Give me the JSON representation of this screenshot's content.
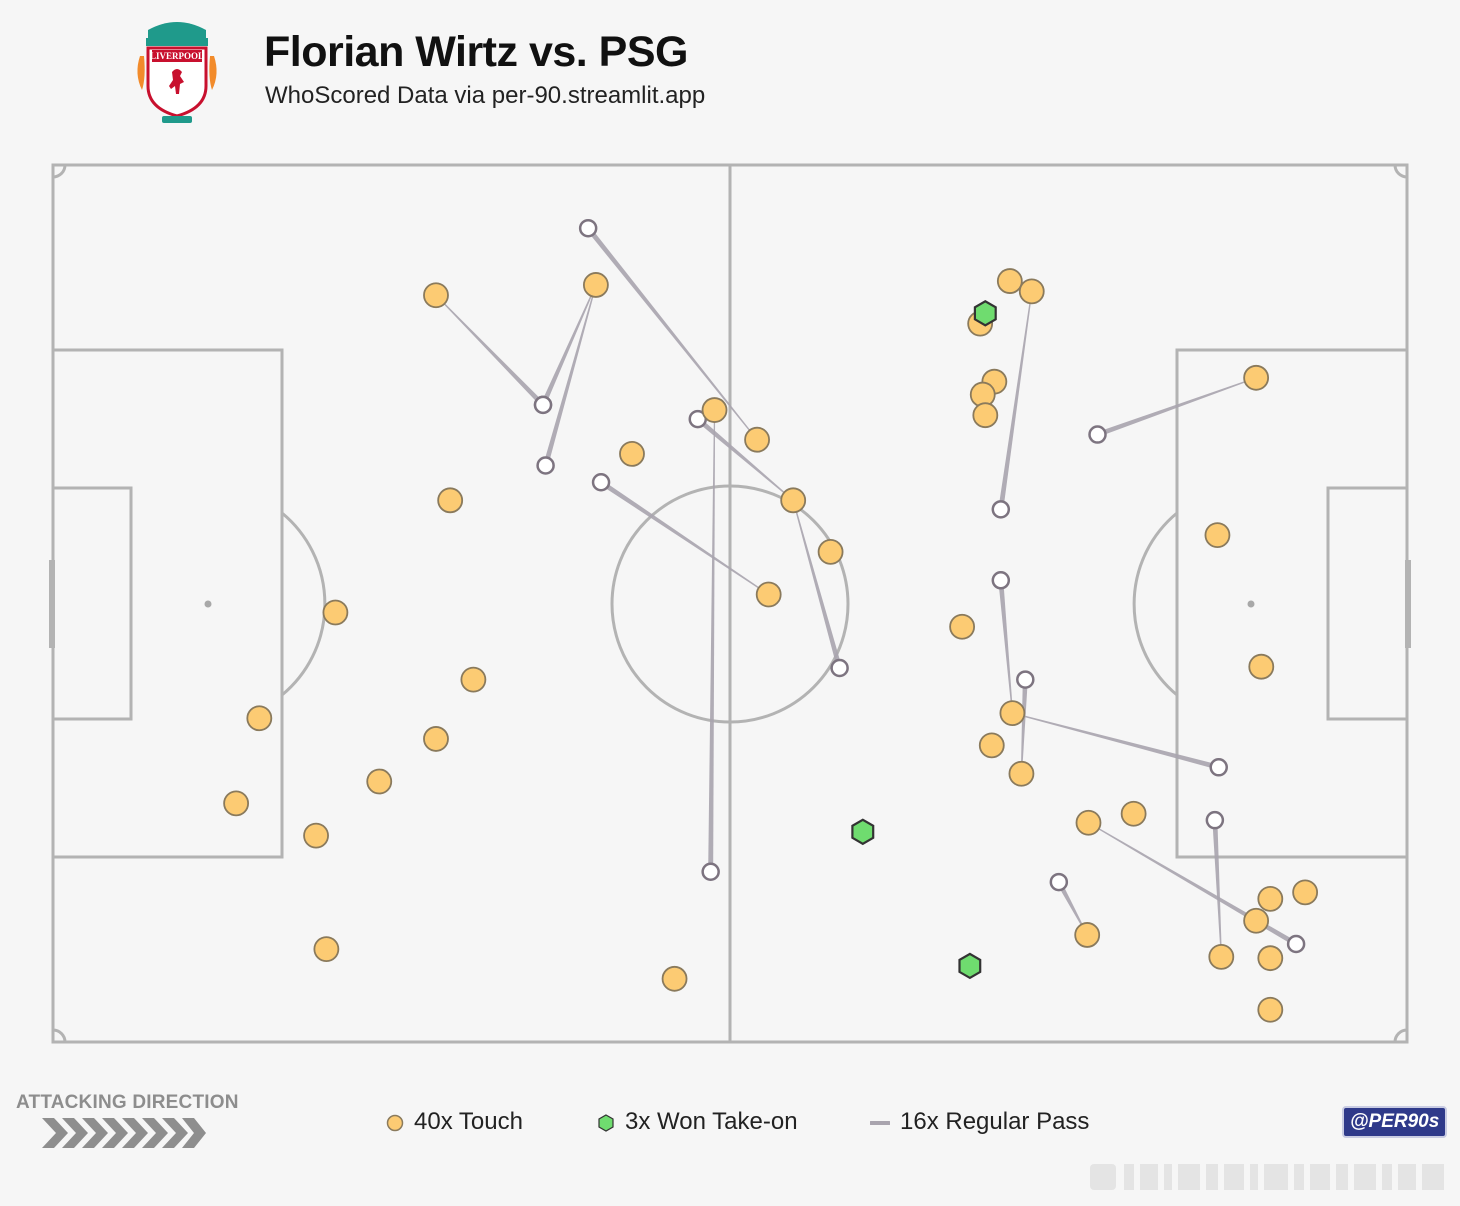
{
  "header": {
    "title": "Florian Wirtz vs. PSG",
    "subtitle": "WhoScored Data via per-90.streamlit.app",
    "crest_text": "LIVERPOOL"
  },
  "colors": {
    "touch": "#fccb73",
    "touch_stroke": "#8a7a5c",
    "takeon": "#6fdc6f",
    "takeon_stroke": "#333333",
    "pass": "#a9a4ae",
    "pitch_line": "#b3b3b3",
    "background": "#f6f6f6"
  },
  "chart_data": {
    "type": "scatter",
    "title": "Florian Wirtz vs. PSG",
    "subtitle": "WhoScored Data via per-90.streamlit.app",
    "xlim": [
      0,
      105
    ],
    "ylim": [
      0,
      68
    ],
    "touches": [
      [
        14.2,
        18.5
      ],
      [
        20.4,
        16.0
      ],
      [
        29.7,
        23.5
      ],
      [
        32.6,
        28.1
      ],
      [
        25.3,
        20.2
      ],
      [
        21.2,
        7.2
      ],
      [
        29.7,
        57.9
      ],
      [
        42.1,
        58.7
      ],
      [
        51.3,
        49.0
      ],
      [
        54.6,
        46.7
      ],
      [
        55.5,
        34.7
      ],
      [
        57.4,
        42.0
      ],
      [
        60.3,
        38.0
      ],
      [
        21.9,
        33.3
      ],
      [
        16.0,
        25.1
      ],
      [
        30.8,
        42.0
      ],
      [
        44.9,
        45.6
      ],
      [
        70.5,
        32.2
      ],
      [
        71.9,
        55.7
      ],
      [
        74.2,
        59.0
      ],
      [
        75.9,
        58.2
      ],
      [
        73.0,
        51.2
      ],
      [
        72.1,
        50.2
      ],
      [
        72.3,
        48.6
      ],
      [
        93.3,
        51.5
      ],
      [
        90.3,
        39.3
      ],
      [
        93.7,
        29.1
      ],
      [
        74.4,
        25.5
      ],
      [
        72.8,
        23.0
      ],
      [
        75.1,
        20.8
      ],
      [
        80.3,
        17.0
      ],
      [
        83.8,
        17.7
      ],
      [
        97.1,
        11.6
      ],
      [
        93.3,
        9.4
      ],
      [
        94.4,
        11.1
      ],
      [
        90.6,
        6.6
      ],
      [
        94.4,
        6.5
      ],
      [
        80.2,
        8.3
      ],
      [
        94.4,
        2.5
      ],
      [
        48.2,
        4.9
      ]
    ],
    "takeons": [
      [
        72.3,
        56.5
      ],
      [
        62.8,
        16.3
      ],
      [
        71.1,
        5.9
      ]
    ],
    "passes": [
      [
        29.7,
        57.9,
        38.0,
        49.4
      ],
      [
        42.1,
        58.7,
        38.2,
        44.7
      ],
      [
        42.1,
        58.7,
        38.0,
        49.4
      ],
      [
        55.5,
        34.7,
        42.5,
        43.4
      ],
      [
        54.6,
        46.7,
        41.5,
        63.1
      ],
      [
        57.4,
        42.0,
        50.0,
        48.3
      ],
      [
        57.4,
        42.0,
        61.0,
        29.0
      ],
      [
        51.3,
        49.0,
        51.0,
        13.2
      ],
      [
        75.9,
        58.2,
        73.5,
        41.3
      ],
      [
        93.3,
        51.5,
        81.0,
        47.1
      ],
      [
        74.4,
        25.5,
        73.5,
        35.8
      ],
      [
        74.4,
        25.5,
        90.4,
        21.3
      ],
      [
        75.1,
        20.8,
        75.4,
        28.1
      ],
      [
        90.6,
        6.6,
        90.1,
        17.2
      ],
      [
        80.2,
        8.3,
        78.0,
        12.4
      ],
      [
        80.3,
        17.0,
        96.4,
        7.6
      ]
    ]
  },
  "legend": {
    "attacking_direction": "ATTACKING DIRECTION",
    "touch_label": "40x Touch",
    "takeon_label": "3x Won Take-on",
    "pass_label": "16x Regular Pass"
  },
  "handle": "@PER90s"
}
